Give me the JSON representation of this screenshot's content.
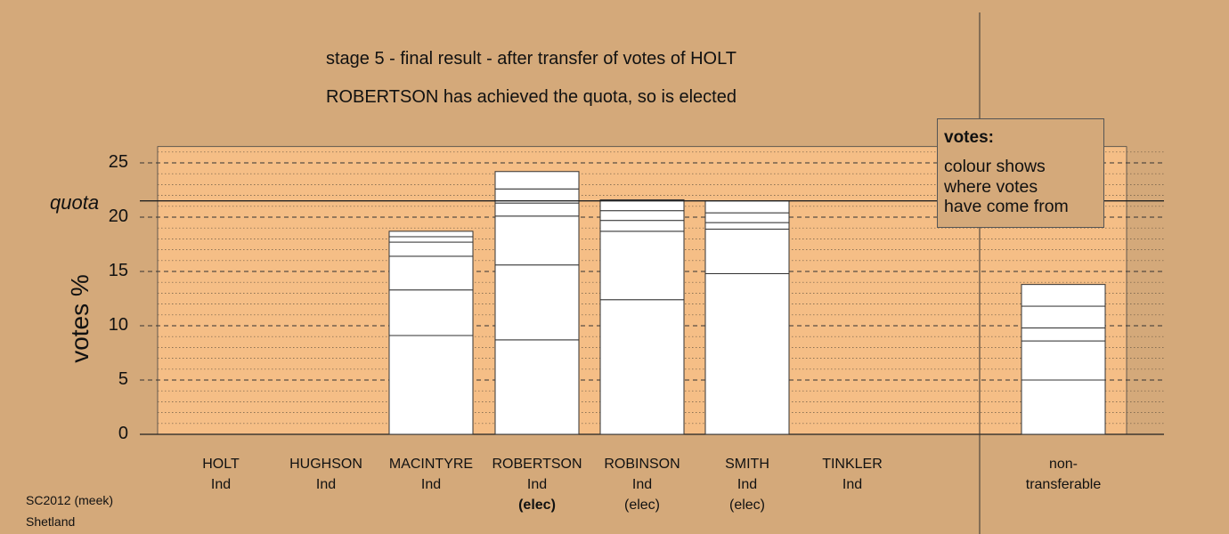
{
  "title_line1": "stage 5 - final result - after transfer of votes of HOLT",
  "title_line2": "ROBERTSON has achieved the quota, so is elected",
  "legend": {
    "title": "votes:",
    "text": "colour shows\nwhere votes\nhave come from"
  },
  "footer": {
    "line1": "SC2012 (meek)",
    "line2": "Shetland"
  },
  "colors": {
    "background": "#d4a97a",
    "plot_area": "#f5be86",
    "bar_fill": "#ffffff"
  },
  "chart_data": {
    "type": "bar",
    "stacked": true,
    "ylabel": "votes %",
    "ylim": [
      0,
      26.5
    ],
    "yticks": [
      0,
      5,
      10,
      15,
      20,
      25
    ],
    "quota": {
      "label": "quota",
      "value": 21.5
    },
    "categories": [
      {
        "name": "HOLT",
        "party": "Ind",
        "status": ""
      },
      {
        "name": "HUGHSON",
        "party": "Ind",
        "status": ""
      },
      {
        "name": "MACINTYRE",
        "party": "Ind",
        "status": ""
      },
      {
        "name": "ROBERTSON",
        "party": "Ind",
        "status": "(elec)",
        "status_bold": true
      },
      {
        "name": "ROBINSON",
        "party": "Ind",
        "status": "(elec)"
      },
      {
        "name": "SMITH",
        "party": "Ind",
        "status": "(elec)"
      },
      {
        "name": "TINKLER",
        "party": "Ind",
        "status": ""
      }
    ],
    "segments": [
      [],
      [],
      [
        9.1,
        4.2,
        3.1,
        1.3,
        0.5,
        0.5
      ],
      [
        8.7,
        6.9,
        4.5,
        1.2,
        1.3,
        1.6
      ],
      [
        12.4,
        6.3,
        1.0,
        0.9,
        1.0
      ],
      [
        14.8,
        4.1,
        0.6,
        0.9,
        1.1
      ],
      []
    ],
    "extra_column": {
      "label_line1": "non-",
      "label_line2": "transferable",
      "segments": [
        5.0,
        3.6,
        1.2,
        2.0,
        2.0
      ]
    },
    "grid": true
  }
}
